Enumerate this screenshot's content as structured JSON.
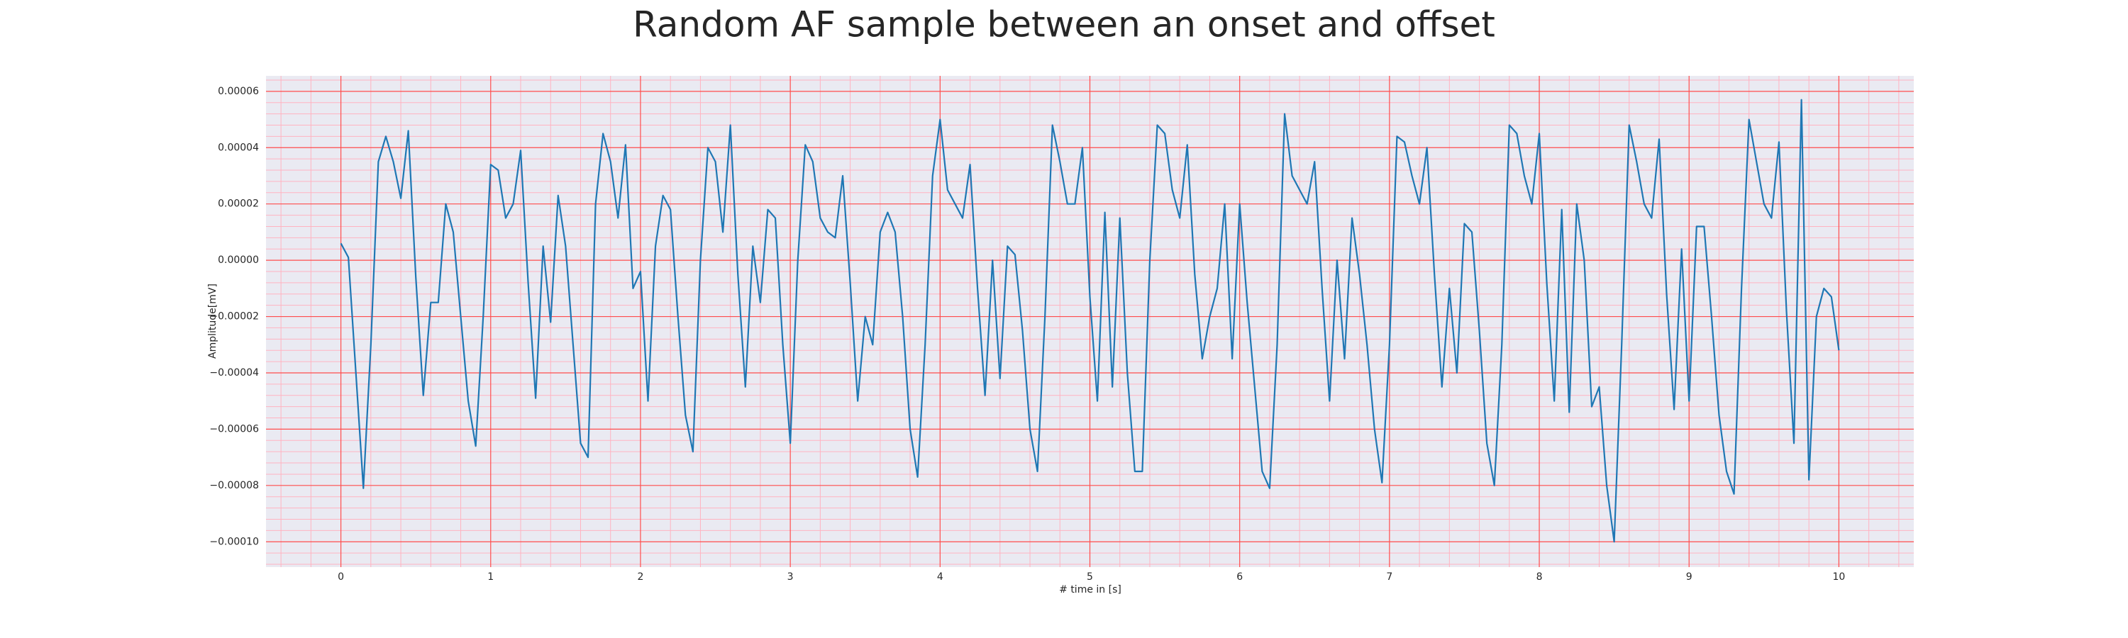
{
  "chart_data": {
    "type": "line",
    "title": "Random AF sample between an onset and offset",
    "xlabel": "# time in [s]",
    "ylabel": "Amplitude[mV]",
    "color": "#1f77b4",
    "grid": true,
    "minor_grid": true,
    "grid_color": "#ff4d4d",
    "minor_grid_color": "#ffb3c1",
    "background": "#eaeaf2",
    "xlim": [
      -0.5,
      10.5
    ],
    "ylim": [
      -0.000109,
      6.55e-05
    ],
    "xticks": [
      0,
      1,
      2,
      3,
      4,
      5,
      6,
      7,
      8,
      9,
      10
    ],
    "yticks": [
      {
        "value": -0.0001,
        "label": "−0.00010"
      },
      {
        "value": -8e-05,
        "label": "−0.00008"
      },
      {
        "value": -6e-05,
        "label": "−0.00006"
      },
      {
        "value": -4e-05,
        "label": "−0.00004"
      },
      {
        "value": -2e-05,
        "label": "−0.00002"
      },
      {
        "value": 0,
        "label": "0.00000"
      },
      2e-05,
      4e-05,
      6e-05
    ],
    "x": [
      0,
      0.05,
      0.1,
      0.15,
      0.2,
      0.25,
      0.3,
      0.35,
      0.4,
      0.45,
      0.5,
      0.55,
      0.6,
      0.65,
      0.7,
      0.75,
      0.8,
      0.85,
      0.9,
      0.95,
      1,
      1.05,
      1.1,
      1.15,
      1.2,
      1.25,
      1.3,
      1.35,
      1.4,
      1.45,
      1.5,
      1.55,
      1.6,
      1.65,
      1.7,
      1.75,
      1.8,
      1.85,
      1.9,
      1.95,
      2,
      2.05,
      2.1,
      2.15,
      2.2,
      2.25,
      2.3,
      2.35,
      2.4,
      2.45,
      2.5,
      2.55,
      2.6,
      2.65,
      2.7,
      2.75,
      2.8,
      2.85,
      2.9,
      2.95,
      3,
      3.05,
      3.1,
      3.15,
      3.2,
      3.25,
      3.3,
      3.35,
      3.4,
      3.45,
      3.5,
      3.55,
      3.6,
      3.65,
      3.7,
      3.75,
      3.8,
      3.85,
      3.9,
      3.95,
      4,
      4.05,
      4.1,
      4.15,
      4.2,
      4.25,
      4.3,
      4.35,
      4.4,
      4.45,
      4.5,
      4.55,
      4.6,
      4.65,
      4.7,
      4.75,
      4.8,
      4.85,
      4.9,
      4.95,
      5,
      5.05,
      5.1,
      5.15,
      5.2,
      5.25,
      5.3,
      5.35,
      5.4,
      5.45,
      5.5,
      5.55,
      5.6,
      5.65,
      5.7,
      5.75,
      5.8,
      5.85,
      5.9,
      5.95,
      6,
      6.05,
      6.1,
      6.15,
      6.2,
      6.25,
      6.3,
      6.35,
      6.4,
      6.45,
      6.5,
      6.55,
      6.6,
      6.65,
      6.7,
      6.75,
      6.8,
      6.85,
      6.9,
      6.95,
      7,
      7.05,
      7.1,
      7.15,
      7.2,
      7.25,
      7.3,
      7.35,
      7.4,
      7.45,
      7.5,
      7.55,
      7.6,
      7.65,
      7.7,
      7.75,
      7.8,
      7.85,
      7.9,
      7.95,
      8,
      8.05,
      8.1,
      8.15,
      8.2,
      8.25,
      8.3,
      8.35,
      8.4,
      8.45,
      8.5,
      8.55,
      8.6,
      8.65,
      8.7,
      8.75,
      8.8,
      8.85,
      8.9,
      8.95,
      9,
      9.05,
      9.1,
      9.15,
      9.2,
      9.25,
      9.3,
      9.35,
      9.4,
      9.45,
      9.5,
      9.55,
      9.6,
      9.65,
      9.7,
      9.75,
      9.8,
      9.85,
      9.9,
      9.95,
      10
    ],
    "values": [
      6e-06,
      1e-06,
      -4e-05,
      -8.1e-05,
      -3e-05,
      3.5e-05,
      4.4e-05,
      3.5e-05,
      2.2e-05,
      4.6e-05,
      -6e-06,
      -4.8e-05,
      -1.5e-05,
      -1.5e-05,
      2e-05,
      1e-05,
      -2e-05,
      -5e-05,
      -6.6e-05,
      -2e-05,
      3.4e-05,
      3.2e-05,
      1.5e-05,
      2e-05,
      3.9e-05,
      -8e-06,
      -4.9e-05,
      5e-06,
      -2.2e-05,
      2.3e-05,
      5e-06,
      -3e-05,
      -6.5e-05,
      -7e-05,
      2e-05,
      4.5e-05,
      3.5e-05,
      1.5e-05,
      4.1e-05,
      -1e-05,
      -4e-06,
      -5e-05,
      5e-06,
      2.3e-05,
      1.8e-05,
      -2e-05,
      -5.5e-05,
      -6.8e-05,
      0,
      4e-05,
      3.5e-05,
      1e-05,
      4.8e-05,
      -5e-06,
      -4.5e-05,
      5e-06,
      -1.5e-05,
      1.8e-05,
      1.5e-05,
      -3e-05,
      -6.5e-05,
      0,
      4.1e-05,
      3.5e-05,
      1.5e-05,
      1e-05,
      8e-06,
      3e-05,
      -8e-06,
      -5e-05,
      -2e-05,
      -3e-05,
      1e-05,
      1.7e-05,
      1e-05,
      -2e-05,
      -6e-05,
      -7.7e-05,
      -3e-05,
      3e-05,
      5e-05,
      2.5e-05,
      2e-05,
      1.5e-05,
      3.4e-05,
      -1e-05,
      -4.8e-05,
      0,
      -4.2e-05,
      5e-06,
      2e-06,
      -2.5e-05,
      -6e-05,
      -7.5e-05,
      -2e-05,
      4.8e-05,
      3.5e-05,
      2e-05,
      2e-05,
      4e-05,
      -1.3e-05,
      -5e-05,
      1.7e-05,
      -4.5e-05,
      1.5e-05,
      -4e-05,
      -7.5e-05,
      -7.5e-05,
      0,
      4.8e-05,
      4.5e-05,
      2.5e-05,
      1.5e-05,
      4.1e-05,
      -5e-06,
      -3.5e-05,
      -2e-05,
      -1e-05,
      2e-05,
      -3.5e-05,
      2e-05,
      -1.5e-05,
      -4.5e-05,
      -7.5e-05,
      -8.1e-05,
      -3e-05,
      5.2e-05,
      3e-05,
      2.5e-05,
      2e-05,
      3.5e-05,
      -1e-05,
      -5e-05,
      0,
      -3.5e-05,
      1.5e-05,
      -5e-06,
      -3e-05,
      -6e-05,
      -7.9e-05,
      -3e-05,
      4.4e-05,
      4.2e-05,
      3e-05,
      2e-05,
      4e-05,
      -5e-06,
      -4.5e-05,
      -1e-05,
      -4e-05,
      1.3e-05,
      1e-05,
      -2.5e-05,
      -6.5e-05,
      -8e-05,
      -3e-05,
      4.8e-05,
      4.5e-05,
      3e-05,
      2e-05,
      4.5e-05,
      -8e-06,
      -5e-05,
      1.8e-05,
      -5.4e-05,
      2e-05,
      0,
      -5.2e-05,
      -4.5e-05,
      -8e-05,
      -0.0001,
      -3e-05,
      4.8e-05,
      3.5e-05,
      2e-05,
      1.5e-05,
      4.3e-05,
      -1.2e-05,
      -5.3e-05,
      4e-06,
      -5e-05,
      1.2e-05,
      1.2e-05,
      -2e-05,
      -5.5e-05,
      -7.5e-05,
      -8.3e-05,
      -1e-05,
      5e-05,
      3.5e-05,
      2e-05,
      1.5e-05,
      4.2e-05,
      -1.8e-05,
      -6.5e-05,
      5.7e-05,
      -7.8e-05,
      -2e-05,
      -1e-05,
      -1.3e-05,
      -3.2e-05
    ]
  }
}
